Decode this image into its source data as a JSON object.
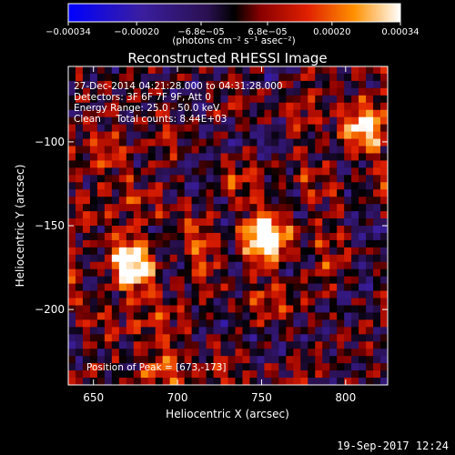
{
  "chart_data": {
    "type": "heatmap",
    "title": "Reconstructed RHESSI Image",
    "xlabel": "Heliocentric X (arcsec)",
    "ylabel": "Heliocentric Y (arcsec)",
    "xlim": [
      635,
      825
    ],
    "ylim": [
      -245,
      -55
    ],
    "xticks": [
      650,
      700,
      750,
      800
    ],
    "yticks": [
      -100,
      -150,
      -200
    ],
    "colorbar": {
      "label": "(photons cm⁻² s⁻¹ asec⁻²)",
      "range": [
        -0.00034,
        0.00034
      ],
      "tick_labels": [
        "−0.00034",
        "−0.00020",
        "−6.8e−05",
        "6.8e−05",
        "0.00020",
        "0.00034"
      ],
      "tick_values": [
        -0.00034,
        -0.0002,
        -6.8e-05,
        6.8e-05,
        0.0002,
        0.00034
      ]
    },
    "annotations": [
      "27-Dec-2014 04:21:28.000 to 04:31:28.000",
      "Detectors: 3F 6F 7F 9F, Att 0",
      "Energy Range: 25.0 - 50.0 keV",
      "Clean     Total counts: 8.44E+03"
    ],
    "peak_label": "Position of Peak = [673,-173]",
    "sources": [
      {
        "x": 752,
        "y": -158,
        "peak": 0.00034
      },
      {
        "x": 673,
        "y": -173,
        "peak": 0.00034
      },
      {
        "x": 812,
        "y": -90,
        "peak": 0.00026
      },
      {
        "x": 690,
        "y": -235,
        "peak": 0.00018
      },
      {
        "x": 660,
        "y": -110,
        "peak": 0.00014
      }
    ]
  },
  "footer": {
    "date": "19-Sep-2017 12:24"
  }
}
